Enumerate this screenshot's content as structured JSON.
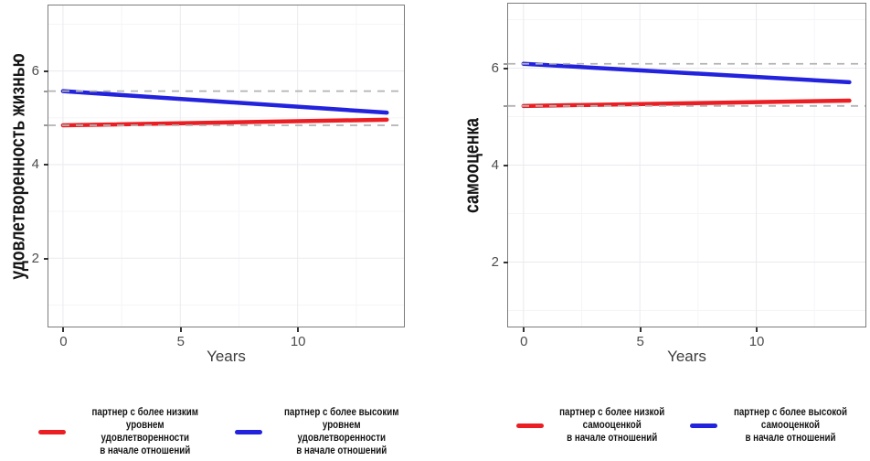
{
  "colors": {
    "red": "#EA1E23",
    "blue": "#2322DC",
    "grid_major": "#EAEAF0",
    "grid_minor": "#F5F5F8",
    "ref_line": "#B3B3B3",
    "axis_text": "#4D4D4D",
    "panel_border": "#7C7C7C"
  },
  "chart_data": [
    {
      "type": "line",
      "title": "",
      "xlabel": "Years",
      "ylabel": "удовлетворенность жизнью",
      "x_ticks": [
        0,
        5,
        10
      ],
      "y_ticks": [
        6,
        4,
        2
      ],
      "x_minor": [
        2.5,
        7.5,
        12.5
      ],
      "y_minor": [
        7,
        5,
        3,
        1
      ],
      "x_range": [
        -0.62,
        14.53
      ],
      "y_range": [
        0.54,
        7.4
      ],
      "grid": true,
      "legend_position": "bottom",
      "series": [
        {
          "name": "партнер с более низким\nуровнем удовлетворенности\nв начале отношений",
          "color": "red",
          "x": [
            0,
            13.8
          ],
          "y": [
            4.84,
            4.96
          ],
          "ref_line": 4.84
        },
        {
          "name": "партнер с более высоким\nуровнем удовлетворенности\nв начале отношений",
          "color": "blue",
          "x": [
            0,
            13.8
          ],
          "y": [
            5.57,
            5.11
          ],
          "ref_line": 5.57
        }
      ]
    },
    {
      "type": "line",
      "title": "",
      "xlabel": "Years",
      "ylabel": "самооценка",
      "x_ticks": [
        0,
        5,
        10
      ],
      "y_ticks": [
        6,
        4,
        2
      ],
      "x_minor": [
        2.5,
        7.5,
        12.5
      ],
      "y_minor": [
        7,
        5,
        3,
        1
      ],
      "x_range": [
        -0.66,
        14.69
      ],
      "y_range": [
        0.67,
        7.33
      ],
      "grid": true,
      "legend_position": "bottom",
      "series": [
        {
          "name": "партнер с более низкой\nсамооценкой\nв начале отношений",
          "color": "red",
          "x": [
            0,
            14
          ],
          "y": [
            5.22,
            5.33
          ],
          "ref_line": 5.22
        },
        {
          "name": "партнер с более высокой\nсамооценкой\nв начале отношений",
          "color": "blue",
          "x": [
            0,
            14
          ],
          "y": [
            6.09,
            5.71
          ],
          "ref_line": 6.09
        }
      ]
    }
  ]
}
